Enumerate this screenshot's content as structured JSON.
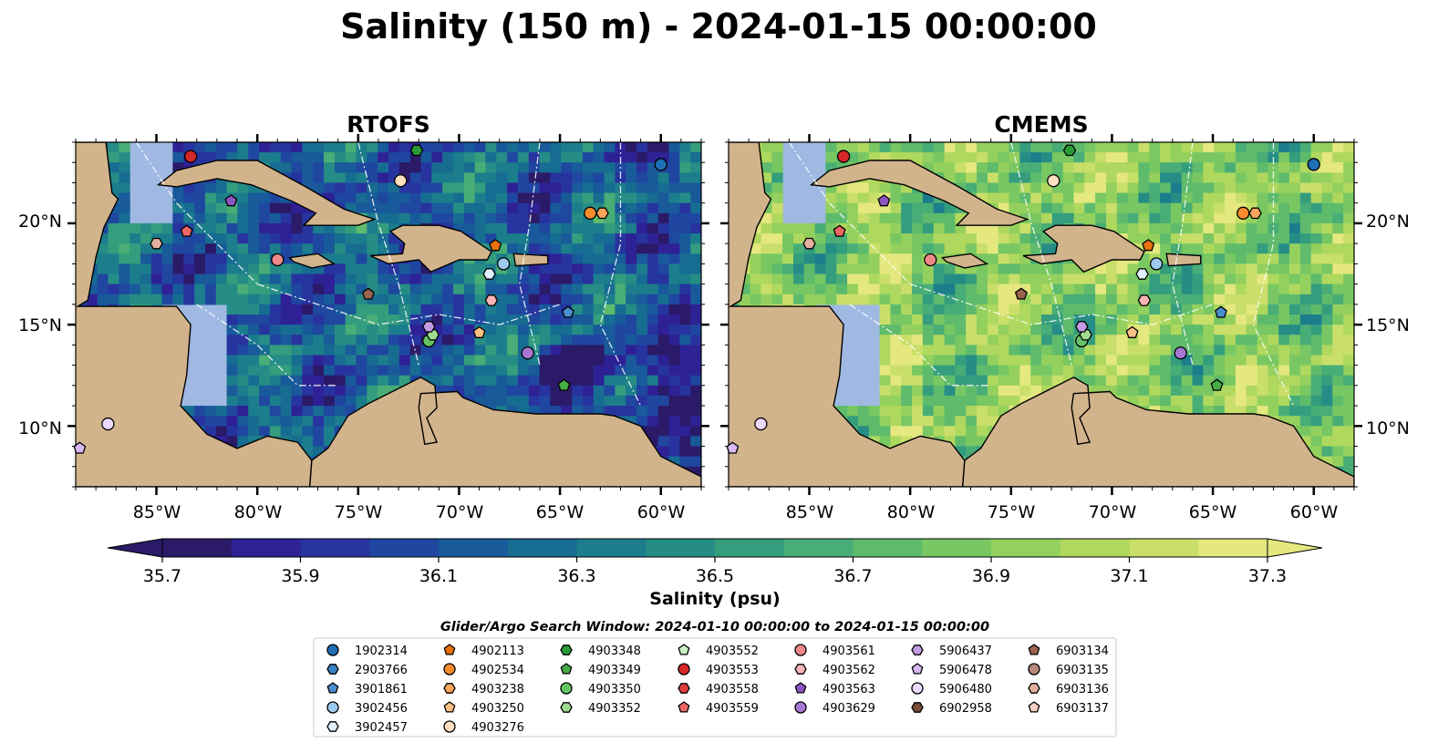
{
  "page_title": "Salinity (150 m) - 2024-01-15 00:00:00",
  "colors": {
    "land": "#d2b48c",
    "shelf": "#9fb9e3",
    "deep_ocean": "#2a1a6e",
    "grid_line": "#ffffff"
  },
  "chart_data": [
    {
      "type": "heatmap",
      "title": "RTOFS",
      "x_ticks": [
        "85°W",
        "80°W",
        "75°W",
        "70°W",
        "65°W",
        "60°W"
      ],
      "y_ticks": [
        "20°N",
        "15°N",
        "10°N"
      ],
      "lon_range": [
        -89,
        -58
      ],
      "lat_range": [
        7,
        24
      ],
      "field_level": 0.3
    },
    {
      "type": "heatmap",
      "title": "CMEMS",
      "x_ticks": [
        "85°W",
        "80°W",
        "75°W",
        "70°W",
        "65°W",
        "60°W"
      ],
      "y_ticks": [
        "20°N",
        "15°N",
        "10°N"
      ],
      "lon_range": [
        -89,
        -58
      ],
      "lat_range": [
        7,
        24
      ],
      "field_level": 0.75
    }
  ],
  "colorbar": {
    "label": "Salinity (psu)",
    "range": [
      35.7,
      37.3
    ],
    "tick_labels": [
      "35.7",
      "35.9",
      "36.1",
      "36.3",
      "36.5",
      "36.7",
      "36.9",
      "37.1",
      "37.3"
    ],
    "palette": [
      "#2b1a68",
      "#2e2196",
      "#27349f",
      "#1f47a0",
      "#185a9a",
      "#176c92",
      "#1c7d8c",
      "#268d86",
      "#349d7e",
      "#48ad76",
      "#5ebb6c",
      "#78c762",
      "#93d05d",
      "#afd85e",
      "#c9df6a",
      "#e4e87f"
    ],
    "extend": "both"
  },
  "legend": {
    "title": "Glider/Argo Search Window: 2024-01-10 00:00:00 to 2024-01-15 00:00:00",
    "entries": [
      {
        "label": "1902314",
        "color": "#1f6fb4",
        "shape": "circle",
        "lon": -60.0,
        "lat": 22.9
      },
      {
        "label": "2903766",
        "color": "#3a82c4",
        "shape": "hexagon",
        "lon": null,
        "lat": null
      },
      {
        "label": "3901861",
        "color": "#4b8fd0",
        "shape": "pentagon",
        "lon": -64.6,
        "lat": 15.6
      },
      {
        "label": "3902456",
        "color": "#9ec9ef",
        "shape": "circle",
        "lon": -67.8,
        "lat": 18.0
      },
      {
        "label": "3902457",
        "color": "#dff0ff",
        "shape": "hexagon",
        "lon": -68.5,
        "lat": 17.5
      },
      {
        "label": "4902113",
        "color": "#e8700f",
        "shape": "pentagon",
        "lon": -68.2,
        "lat": 18.9
      },
      {
        "label": "4902534",
        "color": "#f78c2d",
        "shape": "circle",
        "lon": -63.5,
        "lat": 20.5
      },
      {
        "label": "4903238",
        "color": "#f9a55b",
        "shape": "hexagon",
        "lon": -62.9,
        "lat": 20.5
      },
      {
        "label": "4903250",
        "color": "#fcbf84",
        "shape": "pentagon",
        "lon": -69.0,
        "lat": 14.6
      },
      {
        "label": "4903276",
        "color": "#fde0c0",
        "shape": "circle",
        "lon": -72.9,
        "lat": 22.1
      },
      {
        "label": "4903348",
        "color": "#2a9a36",
        "shape": "hexagon",
        "lon": -72.1,
        "lat": 23.6
      },
      {
        "label": "4903349",
        "color": "#45ad45",
        "shape": "pentagon",
        "lon": -64.8,
        "lat": 12.0
      },
      {
        "label": "4903350",
        "color": "#66c466",
        "shape": "circle",
        "lon": -71.5,
        "lat": 14.2
      },
      {
        "label": "4903352",
        "color": "#9fdc92",
        "shape": "hexagon",
        "lon": -71.3,
        "lat": 14.5
      },
      {
        "label": "4903552",
        "color": "#cdf0c6",
        "shape": "pentagon",
        "lon": null,
        "lat": null
      },
      {
        "label": "4903553",
        "color": "#d62728",
        "shape": "circle",
        "lon": -83.3,
        "lat": 23.3
      },
      {
        "label": "4903558",
        "color": "#e03d3d",
        "shape": "hexagon",
        "lon": null,
        "lat": null
      },
      {
        "label": "4903559",
        "color": "#ee6666",
        "shape": "pentagon",
        "lon": -83.5,
        "lat": 19.6
      },
      {
        "label": "4903561",
        "color": "#f08a8a",
        "shape": "circle",
        "lon": -79.0,
        "lat": 18.2
      },
      {
        "label": "4903562",
        "color": "#f9b5b5",
        "shape": "hexagon",
        "lon": -68.4,
        "lat": 16.2
      },
      {
        "label": "4903563",
        "color": "#8c55c0",
        "shape": "pentagon",
        "lon": -81.3,
        "lat": 21.1
      },
      {
        "label": "4903629",
        "color": "#a877d3",
        "shape": "circle",
        "lon": -66.6,
        "lat": 13.6
      },
      {
        "label": "5906437",
        "color": "#c49be5",
        "shape": "hexagon",
        "lon": -71.5,
        "lat": 14.9
      },
      {
        "label": "5906478",
        "color": "#d8b8f0",
        "shape": "pentagon",
        "lon": -88.8,
        "lat": 8.9
      },
      {
        "label": "5906480",
        "color": "#ecd8fa",
        "shape": "circle",
        "lon": -87.4,
        "lat": 10.1
      },
      {
        "label": "6902958",
        "color": "#7a4a3a",
        "shape": "hexagon",
        "lon": null,
        "lat": null
      },
      {
        "label": "6903134",
        "color": "#9a6450",
        "shape": "pentagon",
        "lon": -74.5,
        "lat": 16.5
      },
      {
        "label": "6903135",
        "color": "#b8877a",
        "shape": "circle",
        "lon": null,
        "lat": null
      },
      {
        "label": "6903136",
        "color": "#e3b0a0",
        "shape": "hexagon",
        "lon": -85.0,
        "lat": 19.0
      },
      {
        "label": "6903137",
        "color": "#f5d0c3",
        "shape": "pentagon",
        "lon": null,
        "lat": null
      }
    ]
  }
}
